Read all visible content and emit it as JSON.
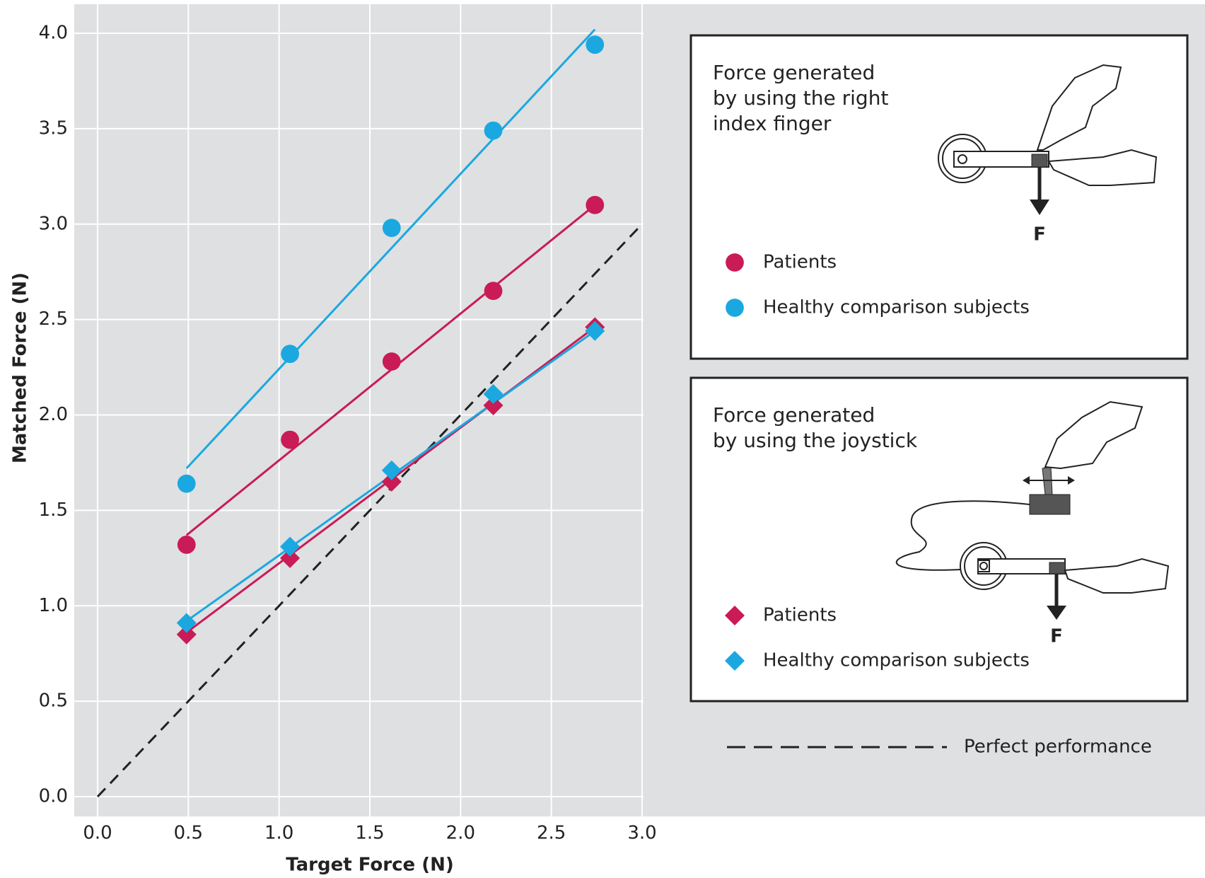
{
  "chart_data": {
    "type": "scatter",
    "xlabel": "Target Force (N)",
    "ylabel": "Matched Force (N)",
    "xlim": [
      0,
      3
    ],
    "ylim": [
      0,
      4
    ],
    "xticks": [
      {
        "value": 0,
        "label": "0.0"
      },
      0.5,
      {
        "value": 1,
        "label": "1.0"
      },
      1.5,
      {
        "value": 2,
        "label": "2.0"
      },
      2.5,
      {
        "value": 3,
        "label": "3.0"
      }
    ],
    "yticks": [
      {
        "value": 0,
        "label": "0.0"
      },
      0.5,
      {
        "value": 1,
        "label": "1.0"
      },
      1.5,
      {
        "value": 2,
        "label": "2.0"
      },
      2.5,
      {
        "value": 3,
        "label": "3.0"
      },
      3.5,
      {
        "value": 4,
        "label": "4.0"
      }
    ],
    "grid": true,
    "groups": [
      {
        "title": [
          "Force generated",
          "by using the right",
          "index finger"
        ],
        "illustration_label": "F",
        "series": [
          {
            "name": "Patients",
            "marker": "circle",
            "color": "#c91b55",
            "x": [
              0.49,
              1.06,
              1.62,
              2.18,
              2.74
            ],
            "values": [
              1.32,
              1.87,
              2.28,
              2.65,
              3.1
            ],
            "fit": [
              1.37,
              3.1
            ]
          },
          {
            "name": "Healthy comparison subjects",
            "marker": "circle",
            "color": "#1ba8e0",
            "x": [
              0.49,
              1.06,
              1.62,
              2.18,
              2.74
            ],
            "values": [
              1.64,
              2.32,
              2.98,
              3.49,
              3.94
            ],
            "fit": [
              1.72,
              4.02
            ]
          }
        ]
      },
      {
        "title": [
          "Force generated",
          "by using the joystick"
        ],
        "illustration_label": "F",
        "series": [
          {
            "name": "Patients",
            "marker": "diamond",
            "color": "#c91b55",
            "x": [
              0.49,
              1.06,
              1.62,
              2.18,
              2.74
            ],
            "values": [
              0.85,
              1.25,
              1.65,
              2.05,
              2.46
            ],
            "fit": [
              0.86,
              2.46
            ]
          },
          {
            "name": "Healthy comparison subjects",
            "marker": "diamond",
            "color": "#1ba8e0",
            "x": [
              0.49,
              1.06,
              1.62,
              2.18,
              2.74
            ],
            "values": [
              0.91,
              1.31,
              1.71,
              2.11,
              2.44
            ],
            "fit": [
              0.92,
              2.44
            ]
          }
        ]
      }
    ],
    "reference_line": {
      "name": "Perfect performance",
      "x": [
        0,
        3
      ],
      "values": [
        0,
        3
      ],
      "color": "#222",
      "dashed": true
    }
  }
}
